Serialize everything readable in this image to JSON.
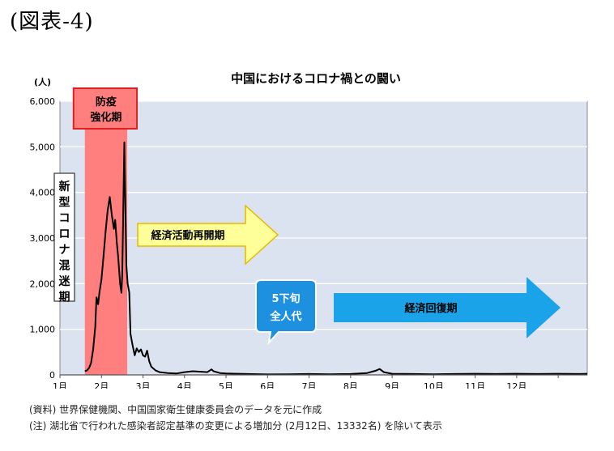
{
  "figure_label": "(図表-4)",
  "notes": [
    "(資料) 世界保健機関、中国国家衛生健康委員会のデータを元に作成",
    "(注) 湖北省で行われた感染者認定基準の変更による増加分 (2月12日、13332名) を除いて表示"
  ],
  "colors": {
    "plot_bg": "#dce3f0",
    "line": "#000000",
    "band_fill": "#ff7f7f",
    "band_border": "#e02020",
    "yellow_arrow": "#ffff99",
    "yellow_border": "#e6b800",
    "blue": "#1aa3e8",
    "callout_blue": "#1e90e0"
  },
  "chart_data": {
    "type": "line",
    "title": "中国におけるコロナ禍との闘い",
    "ylabel": "(人)",
    "xlabel": "",
    "ylim": [
      0,
      6000
    ],
    "xlim": [
      0,
      12.7
    ],
    "yticks": [
      0,
      1000,
      2000,
      3000,
      4000,
      5000,
      6000
    ],
    "ytick_labels": [
      "0",
      "1,000",
      "2,000",
      "3,000",
      "4,000",
      "5,000",
      "6,000"
    ],
    "xtick_labels": [
      "1月",
      "2月",
      "3月",
      "4月",
      "5月",
      "6月",
      "7月",
      "8月",
      "9月",
      "10月",
      "11月",
      "12月"
    ],
    "grid": true,
    "series": [
      {
        "values": [
          [
            0.6,
            80
          ],
          [
            0.65,
            100
          ],
          [
            0.7,
            150
          ],
          [
            0.75,
            260
          ],
          [
            0.8,
            560
          ],
          [
            0.85,
            1050
          ],
          [
            0.88,
            1700
          ],
          [
            0.92,
            1550
          ],
          [
            0.95,
            1800
          ],
          [
            1.0,
            2100
          ],
          [
            1.05,
            2600
          ],
          [
            1.1,
            3150
          ],
          [
            1.15,
            3600
          ],
          [
            1.2,
            3900
          ],
          [
            1.25,
            3500
          ],
          [
            1.3,
            3200
          ],
          [
            1.33,
            3400
          ],
          [
            1.37,
            2900
          ],
          [
            1.4,
            2600
          ],
          [
            1.45,
            2000
          ],
          [
            1.48,
            1800
          ],
          [
            1.5,
            2200
          ],
          [
            1.55,
            5100
          ],
          [
            1.6,
            2400
          ],
          [
            1.63,
            2000
          ],
          [
            1.67,
            1800
          ],
          [
            1.7,
            900
          ],
          [
            1.75,
            650
          ],
          [
            1.8,
            430
          ],
          [
            1.85,
            580
          ],
          [
            1.9,
            500
          ],
          [
            1.95,
            560
          ],
          [
            2.0,
            430
          ],
          [
            2.05,
            400
          ],
          [
            2.1,
            530
          ],
          [
            2.15,
            300
          ],
          [
            2.2,
            180
          ],
          [
            2.3,
            100
          ],
          [
            2.4,
            60
          ],
          [
            2.6,
            40
          ],
          [
            2.8,
            30
          ],
          [
            3.0,
            60
          ],
          [
            3.2,
            80
          ],
          [
            3.4,
            70
          ],
          [
            3.55,
            60
          ],
          [
            3.6,
            90
          ],
          [
            3.65,
            120
          ],
          [
            3.7,
            80
          ],
          [
            3.85,
            40
          ],
          [
            4.0,
            30
          ],
          [
            4.5,
            20
          ],
          [
            5.0,
            10
          ],
          [
            5.5,
            15
          ],
          [
            6.0,
            20
          ],
          [
            6.5,
            15
          ],
          [
            7.0,
            20
          ],
          [
            7.4,
            40
          ],
          [
            7.6,
            90
          ],
          [
            7.7,
            130
          ],
          [
            7.8,
            60
          ],
          [
            8.0,
            25
          ],
          [
            8.5,
            20
          ],
          [
            9.0,
            15
          ],
          [
            9.5,
            20
          ],
          [
            10.0,
            25
          ],
          [
            10.5,
            20
          ],
          [
            11.0,
            25
          ],
          [
            11.5,
            20
          ],
          [
            12.0,
            25
          ],
          [
            12.5,
            20
          ],
          [
            12.7,
            25
          ]
        ]
      }
    ],
    "annotations": {
      "band": {
        "x_start": 0.6,
        "x_end": 1.62,
        "label_line1": "防疫",
        "label_line2": "強化期"
      },
      "vertical_box": {
        "text": "新型コロナ混迷期"
      },
      "yellow_arrow": {
        "text": "経済活動再開期"
      },
      "callout": {
        "line1": "5下旬",
        "line2": "全人代"
      },
      "blue_arrow": {
        "text": "経済回復期"
      }
    }
  }
}
